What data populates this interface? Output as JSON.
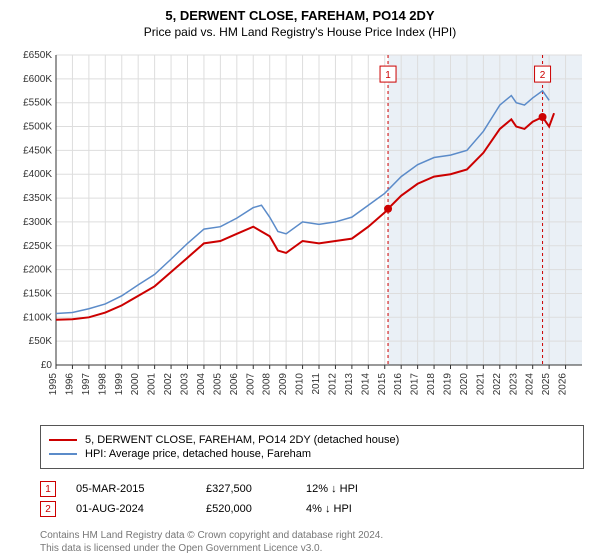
{
  "title": "5, DERWENT CLOSE, FAREHAM, PO14 2DY",
  "subtitle": "Price paid vs. HM Land Registry's House Price Index (HPI)",
  "chart": {
    "type": "line",
    "background_color": "#ffffff",
    "shaded_region_color": "#eaf0f6",
    "shaded_x_start": 2015.2,
    "shaded_x_end": 2027,
    "grid_color": "#dddddd",
    "axis_color": "#333333",
    "xlim": [
      1995,
      2027
    ],
    "ylim": [
      0,
      650000
    ],
    "ytick_step": 50000,
    "ytick_prefix": "£",
    "ytick_suffix": "K",
    "ytick_divisor": 1000,
    "xtick_step": 1,
    "xticks": [
      1995,
      1996,
      1997,
      1998,
      1999,
      2000,
      2001,
      2002,
      2003,
      2004,
      2005,
      2006,
      2007,
      2008,
      2009,
      2010,
      2011,
      2012,
      2013,
      2014,
      2015,
      2016,
      2017,
      2018,
      2019,
      2020,
      2021,
      2022,
      2023,
      2024,
      2025,
      2026
    ],
    "tick_fontsize": 10,
    "series": [
      {
        "name": "price_paid",
        "color": "#cc0000",
        "width": 2,
        "points": [
          [
            1995,
            95000
          ],
          [
            1996,
            96000
          ],
          [
            1997,
            100000
          ],
          [
            1998,
            110000
          ],
          [
            1999,
            125000
          ],
          [
            2000,
            145000
          ],
          [
            2001,
            165000
          ],
          [
            2002,
            195000
          ],
          [
            2003,
            225000
          ],
          [
            2004,
            255000
          ],
          [
            2005,
            260000
          ],
          [
            2006,
            275000
          ],
          [
            2007,
            290000
          ],
          [
            2007.5,
            280000
          ],
          [
            2008,
            270000
          ],
          [
            2008.5,
            240000
          ],
          [
            2009,
            235000
          ],
          [
            2010,
            260000
          ],
          [
            2011,
            255000
          ],
          [
            2012,
            260000
          ],
          [
            2013,
            265000
          ],
          [
            2014,
            290000
          ],
          [
            2015,
            320000
          ],
          [
            2015.2,
            327500
          ],
          [
            2016,
            355000
          ],
          [
            2017,
            380000
          ],
          [
            2018,
            395000
          ],
          [
            2019,
            400000
          ],
          [
            2020,
            410000
          ],
          [
            2021,
            445000
          ],
          [
            2022,
            495000
          ],
          [
            2022.7,
            515000
          ],
          [
            2023,
            500000
          ],
          [
            2023.5,
            495000
          ],
          [
            2024,
            510000
          ],
          [
            2024.6,
            520000
          ],
          [
            2025,
            500000
          ],
          [
            2025.3,
            528000
          ]
        ]
      },
      {
        "name": "hpi",
        "color": "#5b8bc9",
        "width": 1.5,
        "points": [
          [
            1995,
            108000
          ],
          [
            1996,
            110000
          ],
          [
            1997,
            118000
          ],
          [
            1998,
            128000
          ],
          [
            1999,
            145000
          ],
          [
            2000,
            168000
          ],
          [
            2001,
            190000
          ],
          [
            2002,
            222000
          ],
          [
            2003,
            255000
          ],
          [
            2004,
            285000
          ],
          [
            2005,
            290000
          ],
          [
            2006,
            308000
          ],
          [
            2007,
            330000
          ],
          [
            2007.5,
            335000
          ],
          [
            2008,
            310000
          ],
          [
            2008.5,
            280000
          ],
          [
            2009,
            275000
          ],
          [
            2010,
            300000
          ],
          [
            2011,
            295000
          ],
          [
            2012,
            300000
          ],
          [
            2013,
            310000
          ],
          [
            2014,
            335000
          ],
          [
            2015,
            360000
          ],
          [
            2016,
            395000
          ],
          [
            2017,
            420000
          ],
          [
            2018,
            435000
          ],
          [
            2019,
            440000
          ],
          [
            2020,
            450000
          ],
          [
            2021,
            490000
          ],
          [
            2022,
            545000
          ],
          [
            2022.7,
            565000
          ],
          [
            2023,
            550000
          ],
          [
            2023.5,
            545000
          ],
          [
            2024,
            560000
          ],
          [
            2024.6,
            575000
          ],
          [
            2025,
            555000
          ]
        ]
      }
    ],
    "markers": [
      {
        "id": "1",
        "x": 2015.2,
        "y": 327500,
        "label_y": 610000,
        "dashed_color": "#cc0000",
        "badge_border": "#cc0000",
        "badge_text": "#cc0000",
        "dot_color": "#cc0000"
      },
      {
        "id": "2",
        "x": 2024.6,
        "y": 520000,
        "label_y": 610000,
        "dashed_color": "#cc0000",
        "badge_border": "#cc0000",
        "badge_text": "#cc0000",
        "dot_color": "#cc0000"
      }
    ]
  },
  "legend": {
    "items": [
      {
        "color": "#cc0000",
        "label": "5, DERWENT CLOSE, FAREHAM, PO14 2DY (detached house)"
      },
      {
        "color": "#5b8bc9",
        "label": "HPI: Average price, detached house, Fareham"
      }
    ]
  },
  "transactions": [
    {
      "id": "1",
      "date": "05-MAR-2015",
      "price": "£327,500",
      "diff_pct": "12%",
      "diff_arrow": "↓",
      "diff_ref": "HPI"
    },
    {
      "id": "2",
      "date": "01-AUG-2024",
      "price": "£520,000",
      "diff_pct": "4%",
      "diff_arrow": "↓",
      "diff_ref": "HPI"
    }
  ],
  "footer": {
    "line1": "Contains HM Land Registry data © Crown copyright and database right 2024.",
    "line2": "This data is licensed under the Open Government Licence v3.0."
  }
}
